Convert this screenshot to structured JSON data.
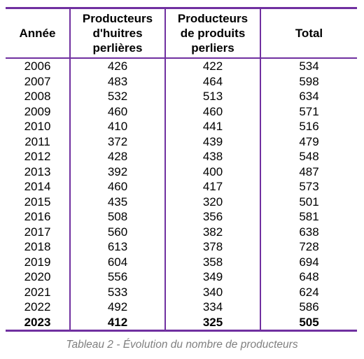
{
  "table": {
    "headers": {
      "year": "Année",
      "oyster_producers": [
        "Producteurs",
        "d'huitres",
        "perlières"
      ],
      "product_producers": [
        "Producteurs",
        "de produits",
        "perliers"
      ],
      "total": "Total"
    },
    "rows": [
      {
        "year": "2006",
        "oyster": "426",
        "products": "422",
        "total": "534"
      },
      {
        "year": "2007",
        "oyster": "483",
        "products": "464",
        "total": "598"
      },
      {
        "year": "2008",
        "oyster": "532",
        "products": "513",
        "total": "634"
      },
      {
        "year": "2009",
        "oyster": "460",
        "products": "460",
        "total": "571"
      },
      {
        "year": "2010",
        "oyster": "410",
        "products": "441",
        "total": "516"
      },
      {
        "year": "2011",
        "oyster": "372",
        "products": "439",
        "total": "479"
      },
      {
        "year": "2012",
        "oyster": "428",
        "products": "438",
        "total": "548"
      },
      {
        "year": "2013",
        "oyster": "392",
        "products": "400",
        "total": "487"
      },
      {
        "year": "2014",
        "oyster": "460",
        "products": "417",
        "total": "573"
      },
      {
        "year": "2015",
        "oyster": "435",
        "products": "320",
        "total": "501"
      },
      {
        "year": "2016",
        "oyster": "508",
        "products": "356",
        "total": "581"
      },
      {
        "year": "2017",
        "oyster": "560",
        "products": "382",
        "total": "638"
      },
      {
        "year": "2018",
        "oyster": "613",
        "products": "378",
        "total": "728"
      },
      {
        "year": "2019",
        "oyster": "604",
        "products": "358",
        "total": "694"
      },
      {
        "year": "2020",
        "oyster": "556",
        "products": "349",
        "total": "648"
      },
      {
        "year": "2021",
        "oyster": "533",
        "products": "340",
        "total": "624"
      },
      {
        "year": "2022",
        "oyster": "492",
        "products": "334",
        "total": "586"
      },
      {
        "year": "2023",
        "oyster": "412",
        "products": "325",
        "total": "505"
      }
    ]
  },
  "caption": "Tableau 2 - Évolution du nombre de producteurs",
  "colors": {
    "rule": "#7030a0",
    "caption": "#7f7f7f"
  }
}
